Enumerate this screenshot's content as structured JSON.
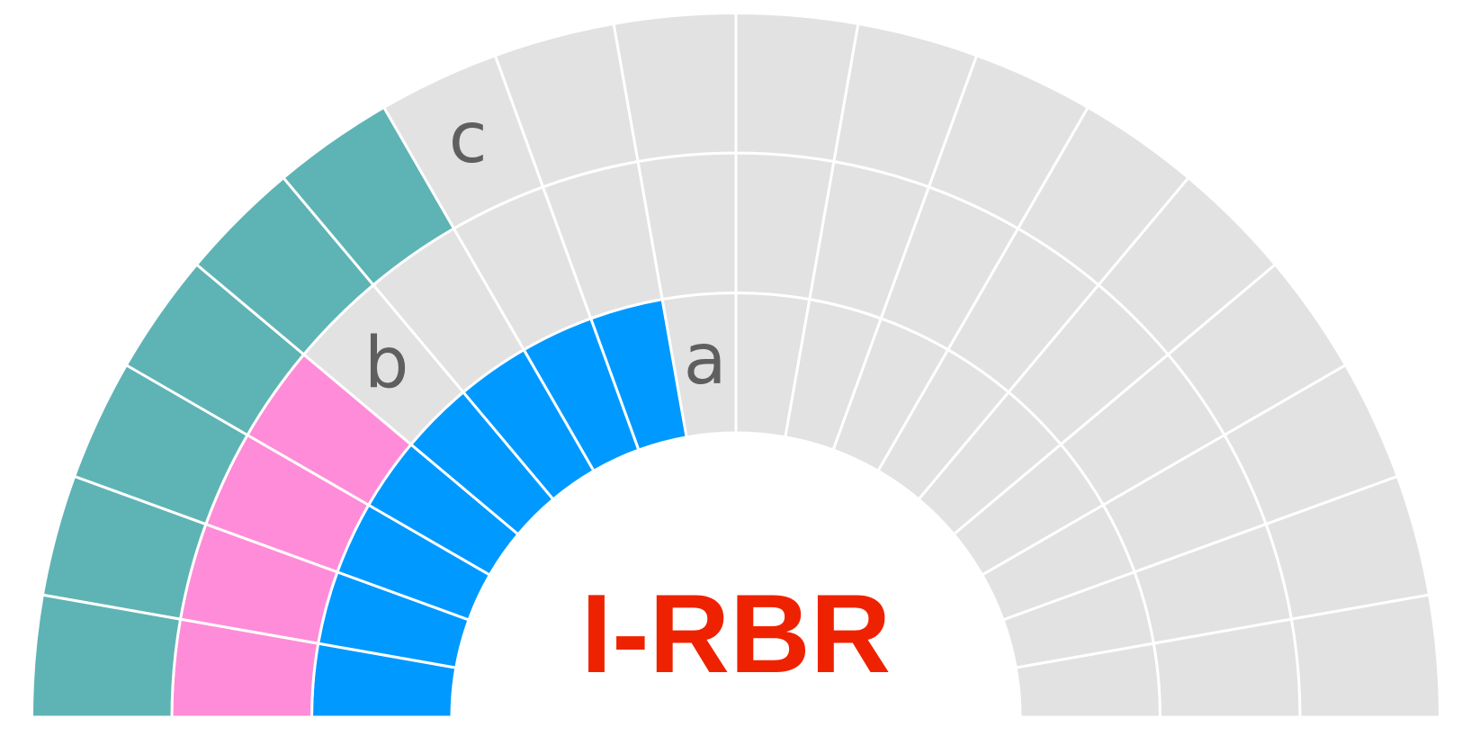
{
  "title": "I-RBR",
  "segments": 18,
  "rings": [
    {
      "label": "a",
      "color": "#0099ff",
      "filled": 8
    },
    {
      "label": "b",
      "color": "#ff8cd8",
      "filled": 4
    },
    {
      "label": "c",
      "color": "#5eb3b5",
      "filled": 6
    }
  ]
}
